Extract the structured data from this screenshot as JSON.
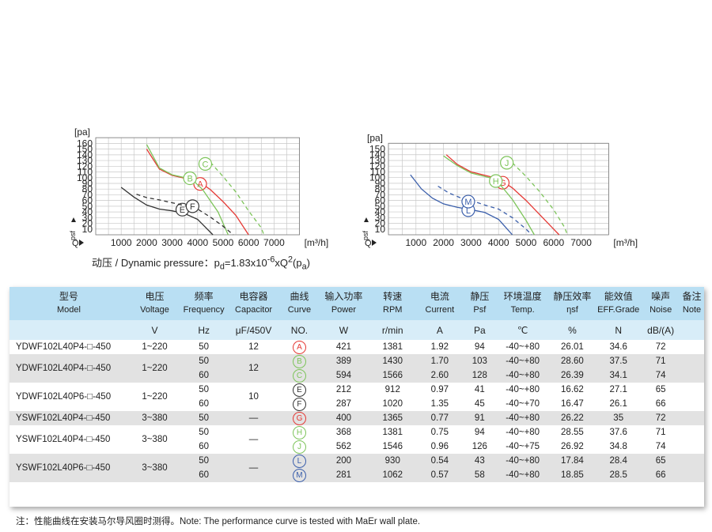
{
  "chart_data": [
    {
      "type": "line",
      "title": "",
      "y_unit_top": "[pa]",
      "y_unit_side": "psf",
      "x_unit": "[m³/h]",
      "q_label": "Q",
      "xticks": [
        1000,
        2000,
        3000,
        4000,
        5000,
        6000,
        7000
      ],
      "yticks": [
        10,
        20,
        30,
        40,
        50,
        60,
        70,
        80,
        90,
        100,
        110,
        120,
        130,
        140,
        150,
        160
      ],
      "xlim": [
        0,
        8000
      ],
      "ylim": [
        0,
        170
      ],
      "grid": true,
      "series": [
        {
          "name": "A",
          "color": "#e53935",
          "dashed": false,
          "label_at": [
            4100,
            89
          ],
          "points": [
            [
              2000,
              150
            ],
            [
              2500,
              115
            ],
            [
              3000,
              104
            ],
            [
              3500,
              99
            ],
            [
              4000,
              95
            ],
            [
              4500,
              79
            ],
            [
              5000,
              58
            ],
            [
              5500,
              34
            ],
            [
              6000,
              0
            ]
          ]
        },
        {
          "name": "B",
          "color": "#7dc45a",
          "dashed": false,
          "label_at": [
            3700,
            99
          ],
          "points": [
            [
              2000,
              158
            ],
            [
              2500,
              117
            ],
            [
              3000,
              105
            ],
            [
              3500,
              100
            ],
            [
              3800,
              96
            ],
            [
              4200,
              79
            ],
            [
              4800,
              40
            ],
            [
              5200,
              0
            ]
          ]
        },
        {
          "name": "C",
          "color": "#7dc45a",
          "dashed": true,
          "label_at": [
            4300,
            124
          ],
          "points": [
            [
              4500,
              127
            ],
            [
              5000,
              102
            ],
            [
              5500,
              75
            ],
            [
              6000,
              42
            ],
            [
              6500,
              12
            ],
            [
              6600,
              0
            ]
          ]
        },
        {
          "name": "E",
          "color": "#333333",
          "dashed": false,
          "label_at": [
            3400,
            44
          ],
          "points": [
            [
              1000,
              83
            ],
            [
              1500,
              66
            ],
            [
              2000,
              52
            ],
            [
              2500,
              45
            ],
            [
              3000,
              42
            ],
            [
              3500,
              37
            ],
            [
              4000,
              27
            ],
            [
              4600,
              0
            ]
          ]
        },
        {
          "name": "F",
          "color": "#333333",
          "dashed": true,
          "label_at": [
            3800,
            50
          ],
          "points": [
            [
              1600,
              71
            ],
            [
              2000,
              65
            ],
            [
              2500,
              61
            ],
            [
              3000,
              56
            ],
            [
              3500,
              51
            ],
            [
              4000,
              45
            ],
            [
              4500,
              31
            ],
            [
              5000,
              15
            ],
            [
              5400,
              0
            ]
          ]
        }
      ]
    },
    {
      "type": "line",
      "title": "",
      "y_unit_top": "[pa]",
      "y_unit_side": "psf",
      "x_unit": "[m³/h]",
      "q_label": "Q",
      "xticks": [
        1000,
        2000,
        3000,
        4000,
        5000,
        6000,
        7000
      ],
      "yticks": [
        10,
        20,
        30,
        40,
        50,
        60,
        70,
        80,
        90,
        100,
        110,
        120,
        130,
        140,
        150
      ],
      "xlim": [
        0,
        8000
      ],
      "ylim": [
        0,
        160
      ],
      "grid": true,
      "series": [
        {
          "name": "G",
          "color": "#e53935",
          "dashed": false,
          "label_at": [
            4150,
            91
          ],
          "points": [
            [
              2100,
              140
            ],
            [
              2500,
              123
            ],
            [
              3000,
              110
            ],
            [
              3500,
              104
            ],
            [
              4000,
              98
            ],
            [
              4500,
              82
            ],
            [
              5000,
              60
            ],
            [
              5500,
              35
            ],
            [
              6000,
              10
            ],
            [
              6200,
              0
            ]
          ]
        },
        {
          "name": "H",
          "color": "#7dc45a",
          "dashed": false,
          "label_at": [
            3900,
            94
          ],
          "points": [
            [
              2000,
              138
            ],
            [
              2500,
              121
            ],
            [
              3000,
              108
            ],
            [
              3500,
              102
            ],
            [
              3900,
              97
            ],
            [
              4500,
              62
            ],
            [
              5000,
              25
            ],
            [
              5300,
              0
            ]
          ]
        },
        {
          "name": "J",
          "color": "#7dc45a",
          "dashed": true,
          "label_at": [
            4300,
            126
          ],
          "points": [
            [
              4500,
              126
            ],
            [
              5000,
              102
            ],
            [
              5500,
              75
            ],
            [
              6000,
              44
            ],
            [
              6400,
              13
            ],
            [
              6500,
              0
            ]
          ]
        },
        {
          "name": "L",
          "color": "#3b5fab",
          "dashed": false,
          "label_at": [
            2900,
            43
          ],
          "points": [
            [
              800,
              105
            ],
            [
              1200,
              80
            ],
            [
              1600,
              64
            ],
            [
              2000,
              54
            ],
            [
              2500,
              48
            ],
            [
              3000,
              44
            ],
            [
              3500,
              39
            ],
            [
              4000,
              27
            ],
            [
              4500,
              0
            ]
          ]
        },
        {
          "name": "M",
          "color": "#3b5fab",
          "dashed": true,
          "label_at": [
            2900,
            58
          ],
          "points": [
            [
              1800,
              85
            ],
            [
              2200,
              73
            ],
            [
              2600,
              65
            ],
            [
              3000,
              60
            ],
            [
              3500,
              52
            ],
            [
              4000,
              45
            ],
            [
              4500,
              30
            ],
            [
              5000,
              10
            ],
            [
              5200,
              0
            ]
          ]
        }
      ]
    }
  ],
  "dynamic_pressure": {
    "prefix": "动压 / Dynamic pressure：p",
    "sub1": "d",
    "mid": "=1.83x10",
    "sup1": "-6",
    "mid2": "xQ",
    "sup2": "2",
    "open": "(p",
    "sub2": "a",
    "close": ")"
  },
  "table": {
    "headers": [
      {
        "zh": "型号",
        "en": "Model"
      },
      {
        "zh": "电压",
        "en": "Voltage"
      },
      {
        "zh": "频率",
        "en": "Frequency"
      },
      {
        "zh": "电容器",
        "en": "Capacitor"
      },
      {
        "zh": "曲线",
        "en": "Curve"
      },
      {
        "zh": "输入功率",
        "en": "Power"
      },
      {
        "zh": "转速",
        "en": "RPM"
      },
      {
        "zh": "电流",
        "en": "Current"
      },
      {
        "zh": "静压",
        "en": "Psf"
      },
      {
        "zh": "环境温度",
        "en": "Temp."
      },
      {
        "zh": "静压效率",
        "en": "ηsf"
      },
      {
        "zh": "能效值",
        "en": "EFF.Grade"
      },
      {
        "zh": "噪声",
        "en": "Noise"
      },
      {
        "zh": "备注",
        "en": "Note"
      }
    ],
    "units": [
      "",
      "V",
      "Hz",
      "μF/450V",
      "NO.",
      "W",
      "r/min",
      "A",
      "Pa",
      "℃",
      "%",
      "N",
      "dB/(A)",
      ""
    ],
    "groups": [
      {
        "model": "YDWF102L40P4-□-450",
        "voltage": "1~220",
        "capacitor": "12",
        "shade": false,
        "rows": [
          {
            "freq": "50",
            "curve": "A",
            "curve_color": "#e53935",
            "power": "421",
            "rpm": "1381",
            "current": "1.92",
            "psf": "94",
            "temp": "-40~+80",
            "eff": "26.01",
            "grade": "34.6",
            "noise": "72"
          }
        ]
      },
      {
        "model": "YDWF102L40P4-□-450",
        "voltage": "1~220",
        "capacitor": "12",
        "shade": true,
        "rows": [
          {
            "freq": "50",
            "curve": "B",
            "curve_color": "#7dc45a",
            "power": "389",
            "rpm": "1430",
            "current": "1.70",
            "psf": "103",
            "temp": "-40~+80",
            "eff": "28.60",
            "grade": "37.5",
            "noise": "71"
          },
          {
            "freq": "60",
            "curve": "C",
            "curve_color": "#7dc45a",
            "power": "594",
            "rpm": "1566",
            "current": "2.60",
            "psf": "128",
            "temp": "-40~+80",
            "eff": "26.39",
            "grade": "34.1",
            "noise": "74"
          }
        ]
      },
      {
        "model": "YDWF102L40P6-□-450",
        "voltage": "1~220",
        "capacitor": "10",
        "shade": false,
        "rows": [
          {
            "freq": "50",
            "curve": "E",
            "curve_color": "#333333",
            "power": "212",
            "rpm": "912",
            "current": "0.97",
            "psf": "41",
            "temp": "-40~+80",
            "eff": "16.62",
            "grade": "27.1",
            "noise": "65"
          },
          {
            "freq": "60",
            "curve": "F",
            "curve_color": "#333333",
            "power": "287",
            "rpm": "1020",
            "current": "1.35",
            "psf": "45",
            "temp": "-40~+70",
            "eff": "16.47",
            "grade": "26.1",
            "noise": "66"
          }
        ]
      },
      {
        "model": "YSWF102L40P4-□-450",
        "voltage": "3~380",
        "capacitor": "—",
        "shade": true,
        "rows": [
          {
            "freq": "50",
            "curve": "G",
            "curve_color": "#e53935",
            "power": "400",
            "rpm": "1365",
            "current": "0.77",
            "psf": "91",
            "temp": "-40~+80",
            "eff": "26.22",
            "grade": "35",
            "noise": "72"
          }
        ]
      },
      {
        "model": "YSWF102L40P4-□-450",
        "voltage": "3~380",
        "capacitor": "—",
        "shade": false,
        "rows": [
          {
            "freq": "50",
            "curve": "H",
            "curve_color": "#7dc45a",
            "power": "368",
            "rpm": "1381",
            "current": "0.75",
            "psf": "94",
            "temp": "-40~+80",
            "eff": "28.55",
            "grade": "37.6",
            "noise": "71"
          },
          {
            "freq": "60",
            "curve": "J",
            "curve_color": "#7dc45a",
            "power": "562",
            "rpm": "1546",
            "current": "0.96",
            "psf": "126",
            "temp": "-40~+75",
            "eff": "26.92",
            "grade": "34.8",
            "noise": "74"
          }
        ]
      },
      {
        "model": "YSWF102L40P6-□-450",
        "voltage": "3~380",
        "capacitor": "—",
        "shade": true,
        "rows": [
          {
            "freq": "50",
            "curve": "L",
            "curve_color": "#3b5fab",
            "power": "200",
            "rpm": "930",
            "current": "0.54",
            "psf": "43",
            "temp": "-40~+80",
            "eff": "17.84",
            "grade": "28.4",
            "noise": "65"
          },
          {
            "freq": "60",
            "curve": "M",
            "curve_color": "#3b5fab",
            "power": "281",
            "rpm": "1062",
            "current": "0.57",
            "psf": "58",
            "temp": "-40~+80",
            "eff": "18.85",
            "grade": "28.5",
            "noise": "66"
          }
        ]
      }
    ]
  },
  "footnote": "注：性能曲线在安装马尔导风圈时测得。Note: The performance curve is tested with MaEr wall plate."
}
